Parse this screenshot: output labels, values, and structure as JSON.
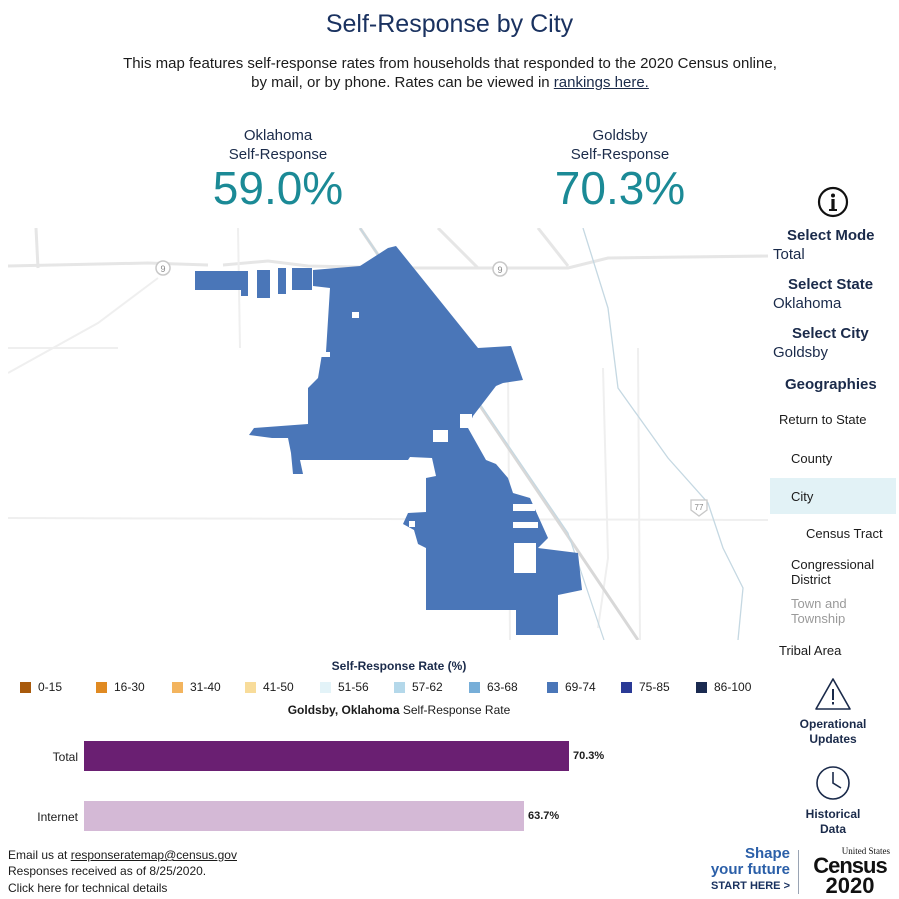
{
  "header": {
    "title": "Self-Response by City",
    "subtitle_text": "This map features self-response rates from households that responded to the 2020 Census online, by mail, or by phone. Rates can be viewed in",
    "subtitle_link": "rankings here."
  },
  "stats": {
    "state": {
      "name": "Oklahoma",
      "label": "Self-Response",
      "value": "59.0%"
    },
    "city": {
      "name": "Goldsby",
      "label": "Self-Response",
      "value": "70.3%"
    }
  },
  "map": {
    "road_labels": [
      "9",
      "9",
      "77"
    ],
    "fill_color": "#4a76b8"
  },
  "sidebar": {
    "info_icon": "info-icon",
    "mode": {
      "heading": "Select Mode",
      "value": "Total"
    },
    "state": {
      "heading": "Select State",
      "value": "Oklahoma"
    },
    "city": {
      "heading": "Select City",
      "value": "Goldsby"
    },
    "geographies": {
      "heading": "Geographies",
      "items": {
        "return_state": "Return to State",
        "county": "County",
        "city": "City",
        "census_tract": "Census Tract",
        "congressional_1": "Congressional",
        "congressional_2": "District",
        "town_1": "Town and",
        "town_2": "Township",
        "tribal": "Tribal Area"
      }
    },
    "operational": {
      "line1": "Operational",
      "line2": "Updates"
    },
    "historical": {
      "line1": "Historical",
      "line2": "Data"
    }
  },
  "legend": {
    "title": "Self-Response Rate (%)",
    "items": [
      {
        "label": "0-15",
        "color": "#a85a0c"
      },
      {
        "label": "16-30",
        "color": "#e08a22"
      },
      {
        "label": "31-40",
        "color": "#f3b45e"
      },
      {
        "label": "41-50",
        "color": "#f8dc9a"
      },
      {
        "label": "51-56",
        "color": "#e3f3f8"
      },
      {
        "label": "57-62",
        "color": "#b4d8ea"
      },
      {
        "label": "63-68",
        "color": "#77aed8"
      },
      {
        "label": "69-74",
        "color": "#4a76b8"
      },
      {
        "label": "75-85",
        "color": "#2a3a96"
      },
      {
        "label": "86-100",
        "color": "#1a2a50"
      }
    ]
  },
  "bars": {
    "title_bold": "Goldsby, Oklahoma",
    "title_rest": " Self-Response Rate",
    "total": {
      "label": "Total",
      "value": "70.3%",
      "pct": 70.3,
      "color": "#6a1f72"
    },
    "internet": {
      "label": "Internet",
      "value": "63.7%",
      "pct": 63.7,
      "color": "#d4b9d6"
    }
  },
  "footer": {
    "email_prefix": "Email us at ",
    "email": "responseratemap@census.gov",
    "responses": "Responses received as of 8/25/2020.",
    "tech": "Click here for technical details"
  },
  "branding": {
    "shape1": "Shape",
    "shape2": "your future",
    "start": "START HERE >",
    "us": "United States",
    "census": "Census",
    "year": "2020"
  }
}
